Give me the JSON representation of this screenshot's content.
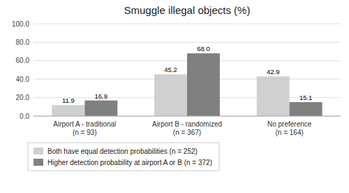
{
  "chart_data": {
    "type": "bar",
    "title": "Smuggle illegal objects (%)",
    "categories": [
      "Airport A - traditional\n(n = 93)",
      "Airport B - randomized\n(n = 367)",
      "No preference\n(n = 164)"
    ],
    "series": [
      {
        "name": "Both have equal detection probabilities (n = 252)",
        "color": "#d0d0d0",
        "values": [
          11.9,
          45.2,
          42.9
        ]
      },
      {
        "name": "Higher detection probability at airport A or B (n = 372)",
        "color": "#808080",
        "values": [
          16.9,
          68.0,
          15.1
        ],
        "value_labels": [
          "16.9",
          "68.0",
          "15.1"
        ]
      }
    ],
    "ylim": [
      0,
      100
    ],
    "yticks": [
      {
        "value": 0,
        "label": "0.0"
      },
      {
        "value": 20,
        "label": "20.0"
      },
      {
        "value": 40,
        "label": "40.0"
      },
      {
        "value": 60,
        "label": "60.0"
      },
      {
        "value": 80,
        "label": "80.0"
      },
      {
        "value": 100,
        "label": "100.0"
      }
    ],
    "grid": true,
    "data_labels": true,
    "legend": "bottom"
  }
}
